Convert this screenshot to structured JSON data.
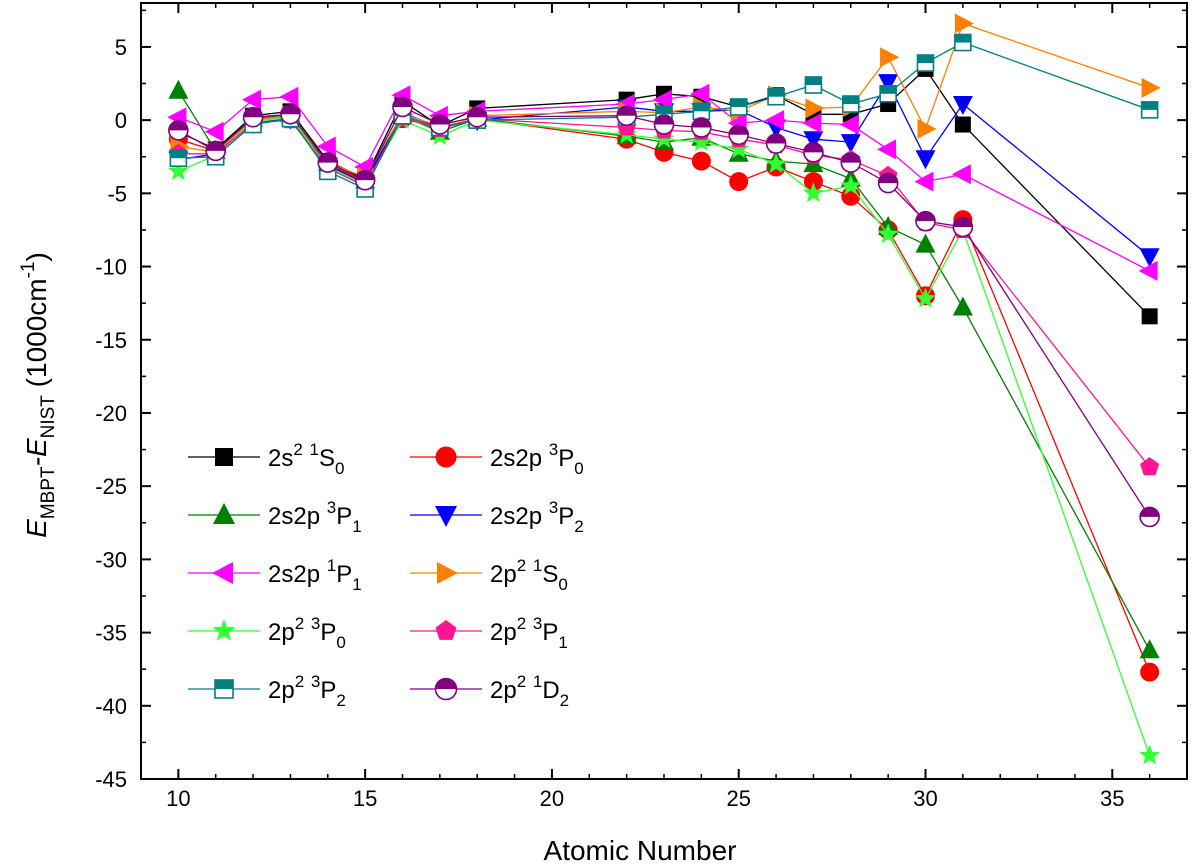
{
  "chart_data": {
    "type": "line",
    "title": "",
    "xlabel": "Atomic Number",
    "ylabel": {
      "main": "E",
      "sub1": "MBPT",
      "dash": "-E",
      "sub2": "NIST",
      "unit_pre": " (1000cm",
      "unit_sup": "-1",
      "unit_post": ")"
    },
    "xlim": [
      9,
      37
    ],
    "ylim": [
      -45,
      8
    ],
    "xticks": [
      10,
      15,
      20,
      25,
      30,
      35
    ],
    "yticks": [
      5,
      0,
      -5,
      -10,
      -15,
      -20,
      -25,
      -30,
      -35,
      -40,
      -45
    ],
    "legend_position": "lower-left",
    "series": [
      {
        "name": "2s2 1S0",
        "label": {
          "a": "2s",
          "sup1": "2",
          "gap": "  ",
          "sup2": "1",
          "b": "S",
          "sub": "0"
        },
        "color": "#000000",
        "marker": "square",
        "x": [
          10,
          11,
          12,
          13,
          14,
          15,
          16,
          17,
          18,
          22,
          23,
          24,
          25,
          26,
          27,
          28,
          29,
          30,
          31,
          36
        ],
        "y": [
          -0.8,
          -2.0,
          0.3,
          0.6,
          -2.8,
          -4.0,
          1.3,
          -0.4,
          0.8,
          1.4,
          1.8,
          1.6,
          0.9,
          1.7,
          0.4,
          0.4,
          1.1,
          3.5,
          -0.3,
          -13.4
        ]
      },
      {
        "name": "2s2p 3P0",
        "label": {
          "a": "2s2p ",
          "sup1": "",
          "gap": "",
          "sup2": "3",
          "b": "P",
          "sub": "0"
        },
        "color": "#ff0000",
        "marker": "circle",
        "x": [
          10,
          11,
          12,
          13,
          14,
          15,
          16,
          17,
          18,
          22,
          23,
          24,
          25,
          26,
          27,
          28,
          29,
          30,
          31,
          36
        ],
        "y": [
          -1.3,
          -2.1,
          0.0,
          0.3,
          -3.0,
          -4.2,
          0.1,
          -0.5,
          0.1,
          -1.3,
          -2.2,
          -2.8,
          -4.2,
          -3.2,
          -4.2,
          -5.2,
          -7.5,
          -12.0,
          -6.8,
          -37.7
        ]
      },
      {
        "name": "2s2p 3P1",
        "label": {
          "a": "2s2p ",
          "sup1": "",
          "gap": "",
          "sup2": "3",
          "b": "P",
          "sub": "1"
        },
        "color": "#008000",
        "marker": "triangle-up",
        "x": [
          10,
          11,
          12,
          13,
          14,
          15,
          16,
          17,
          18,
          22,
          23,
          24,
          25,
          26,
          27,
          28,
          29,
          30,
          31,
          36
        ],
        "y": [
          2.0,
          -2.1,
          0.1,
          0.4,
          -2.9,
          -4.1,
          0.3,
          -0.8,
          0.1,
          -1.1,
          -1.5,
          -1.2,
          -2.3,
          -2.8,
          -3.0,
          -4.0,
          -7.3,
          -8.5,
          -12.8,
          -36.2
        ]
      },
      {
        "name": "2s2p 3P2",
        "label": {
          "a": "2s2p ",
          "sup1": "",
          "gap": "",
          "sup2": "3",
          "b": "P",
          "sub": "2"
        },
        "color": "#0000ff",
        "marker": "triangle-down",
        "x": [
          10,
          11,
          12,
          13,
          14,
          15,
          16,
          17,
          18,
          22,
          23,
          24,
          25,
          26,
          27,
          28,
          29,
          30,
          31,
          36
        ],
        "y": [
          -2.7,
          -2.3,
          -0.2,
          0.1,
          -3.1,
          -4.3,
          0.5,
          -0.5,
          0.0,
          0.9,
          0.6,
          0.6,
          0.7,
          -0.5,
          -1.3,
          -1.5,
          2.6,
          -2.6,
          1.1,
          -9.3
        ]
      },
      {
        "name": "2s2p 1P1",
        "label": {
          "a": "2s2p ",
          "sup1": "",
          "gap": "",
          "sup2": "1",
          "b": "P",
          "sub": "1"
        },
        "color": "#ff00ff",
        "marker": "triangle-left",
        "x": [
          10,
          11,
          12,
          13,
          14,
          15,
          16,
          17,
          18,
          22,
          23,
          24,
          25,
          26,
          27,
          28,
          29,
          30,
          31,
          36
        ],
        "y": [
          0.2,
          -0.8,
          1.4,
          1.6,
          -1.8,
          -3.2,
          1.7,
          0.3,
          0.6,
          1.1,
          1.4,
          1.8,
          -0.2,
          0.0,
          -0.2,
          -0.3,
          -2.0,
          -4.2,
          -3.7,
          -10.3
        ]
      },
      {
        "name": "2p2 1S0",
        "label": {
          "a": "2p",
          "sup1": "2",
          "gap": "  ",
          "sup2": "1",
          "b": "S",
          "sub": "0"
        },
        "color": "#ff8000",
        "marker": "triangle-right",
        "x": [
          10,
          11,
          12,
          13,
          14,
          15,
          16,
          17,
          18,
          22,
          23,
          24,
          25,
          26,
          27,
          28,
          29,
          30,
          31,
          36
        ],
        "y": [
          -1.8,
          -2.2,
          0.0,
          0.3,
          -2.9,
          -3.9,
          0.4,
          -0.4,
          0.3,
          0.6,
          0.5,
          0.9,
          0.6,
          1.7,
          0.8,
          0.9,
          4.3,
          -0.6,
          6.6,
          2.2
        ]
      },
      {
        "name": "2p2 3P0",
        "label": {
          "a": "2p",
          "sup1": "2",
          "gap": "  ",
          "sup2": "3",
          "b": "P",
          "sub": "0"
        },
        "color": "#33ff33",
        "marker": "star",
        "x": [
          10,
          11,
          12,
          13,
          14,
          15,
          16,
          17,
          18,
          22,
          23,
          24,
          25,
          26,
          27,
          28,
          29,
          30,
          31,
          36
        ],
        "y": [
          -3.5,
          -2.4,
          -0.1,
          0.2,
          -3.2,
          -4.4,
          0.0,
          -1.1,
          0.0,
          -1.0,
          -1.3,
          -1.5,
          -2.0,
          -3.0,
          -5.0,
          -4.5,
          -7.8,
          -12.2,
          -7.5,
          -43.4
        ]
      },
      {
        "name": "2p2 3P1",
        "label": {
          "a": "2p",
          "sup1": "2",
          "gap": "  ",
          "sup2": "3",
          "b": "P",
          "sub": "1"
        },
        "color": "#ff1493",
        "marker": "pentagon",
        "x": [
          10,
          11,
          12,
          13,
          14,
          15,
          16,
          17,
          18,
          22,
          23,
          24,
          25,
          26,
          27,
          28,
          29,
          30,
          31,
          36
        ],
        "y": [
          -2.3,
          -2.3,
          -0.2,
          0.0,
          -3.3,
          -4.5,
          0.2,
          -0.6,
          0.1,
          -0.5,
          -0.7,
          -0.8,
          -1.3,
          -1.7,
          -2.4,
          -2.7,
          -3.8,
          -7.0,
          -7.5,
          -23.7
        ]
      },
      {
        "name": "2p2 3P2",
        "label": {
          "a": "2p",
          "sup1": "2",
          "gap": "  ",
          "sup2": "3",
          "b": "P",
          "sub": "2"
        },
        "color": "#008080",
        "marker": "square-half",
        "x": [
          10,
          11,
          12,
          13,
          14,
          15,
          16,
          17,
          18,
          22,
          23,
          24,
          25,
          26,
          27,
          28,
          29,
          30,
          31,
          36
        ],
        "y": [
          -2.6,
          -2.5,
          -0.3,
          0.1,
          -3.5,
          -4.7,
          0.3,
          -0.5,
          0.0,
          0.2,
          0.4,
          0.6,
          0.9,
          1.6,
          2.4,
          1.1,
          1.8,
          3.9,
          5.3,
          0.7
        ]
      },
      {
        "name": "2p2 1D2",
        "label": {
          "a": "2p",
          "sup1": "2",
          "gap": "  ",
          "sup2": "1",
          "b": "D",
          "sub": "2"
        },
        "color": "#800080",
        "marker": "circle-half",
        "x": [
          10,
          11,
          12,
          13,
          14,
          15,
          16,
          17,
          18,
          22,
          23,
          24,
          25,
          26,
          27,
          28,
          29,
          30,
          31,
          36
        ],
        "y": [
          -0.7,
          -2.1,
          0.2,
          0.4,
          -2.9,
          -4.1,
          0.9,
          -0.3,
          0.2,
          0.3,
          -0.3,
          -0.5,
          -1.0,
          -1.6,
          -2.2,
          -2.9,
          -4.3,
          -6.9,
          -7.3,
          -27.1
        ]
      }
    ]
  }
}
